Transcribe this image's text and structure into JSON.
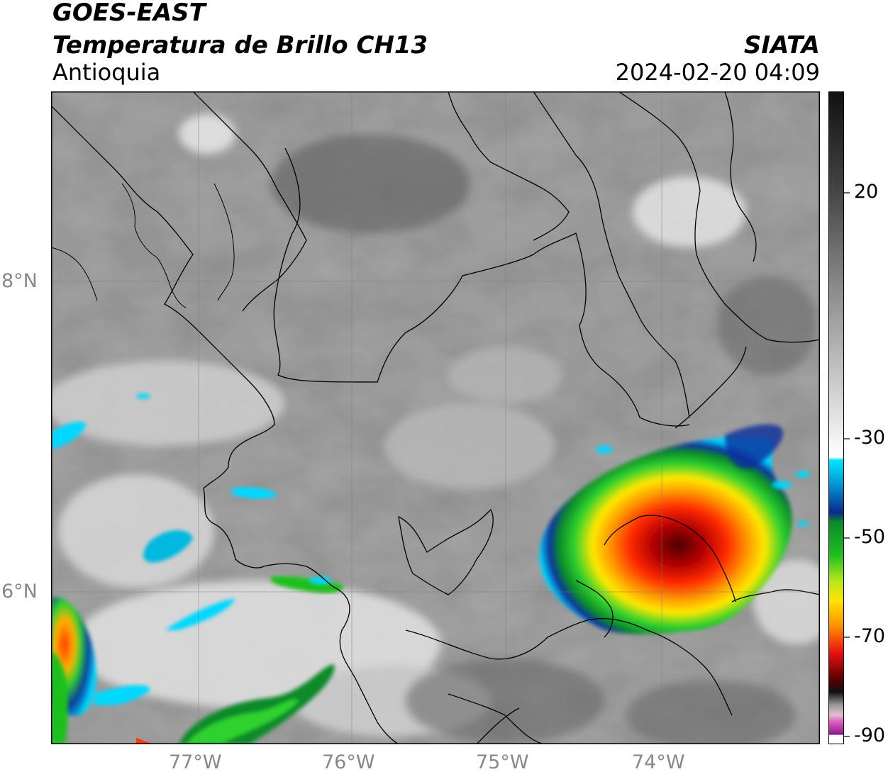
{
  "header": {
    "satellite": "GOES-EAST",
    "product": "Temperatura de Brillo CH13",
    "region": "Antioquia",
    "brand": "SIATA",
    "timestamp": "2024-02-20 04:09"
  },
  "map": {
    "longitude_ticks": [
      "77°W",
      "76°W",
      "75°W",
      "74°W"
    ],
    "latitude_ticks": [
      "8°N",
      "6°N"
    ],
    "extent": {
      "lon_min": -77.95,
      "lon_max": -73.0,
      "lat_min": 5.0,
      "lat_max": 9.2
    }
  },
  "colorbar": {
    "tick_labels": [
      "20",
      "-30",
      "-50",
      "-70",
      "-90"
    ],
    "range": [
      -90,
      30
    ],
    "colors": {
      "warm_gray_top": "#1e1e1e",
      "mid_gray": "#8a8a8a",
      "white_transition": "#ffffff",
      "cyan": "#00e5ff",
      "dark_blue": "#0a2a8c",
      "green": "#1fbf1f",
      "yellow": "#ffe400",
      "orange": "#ff8c00",
      "red": "#e81010",
      "dark_red": "#5a0000",
      "black_core": "#111111",
      "pink": "#e060c0",
      "purple": "#8a1a8a"
    }
  }
}
